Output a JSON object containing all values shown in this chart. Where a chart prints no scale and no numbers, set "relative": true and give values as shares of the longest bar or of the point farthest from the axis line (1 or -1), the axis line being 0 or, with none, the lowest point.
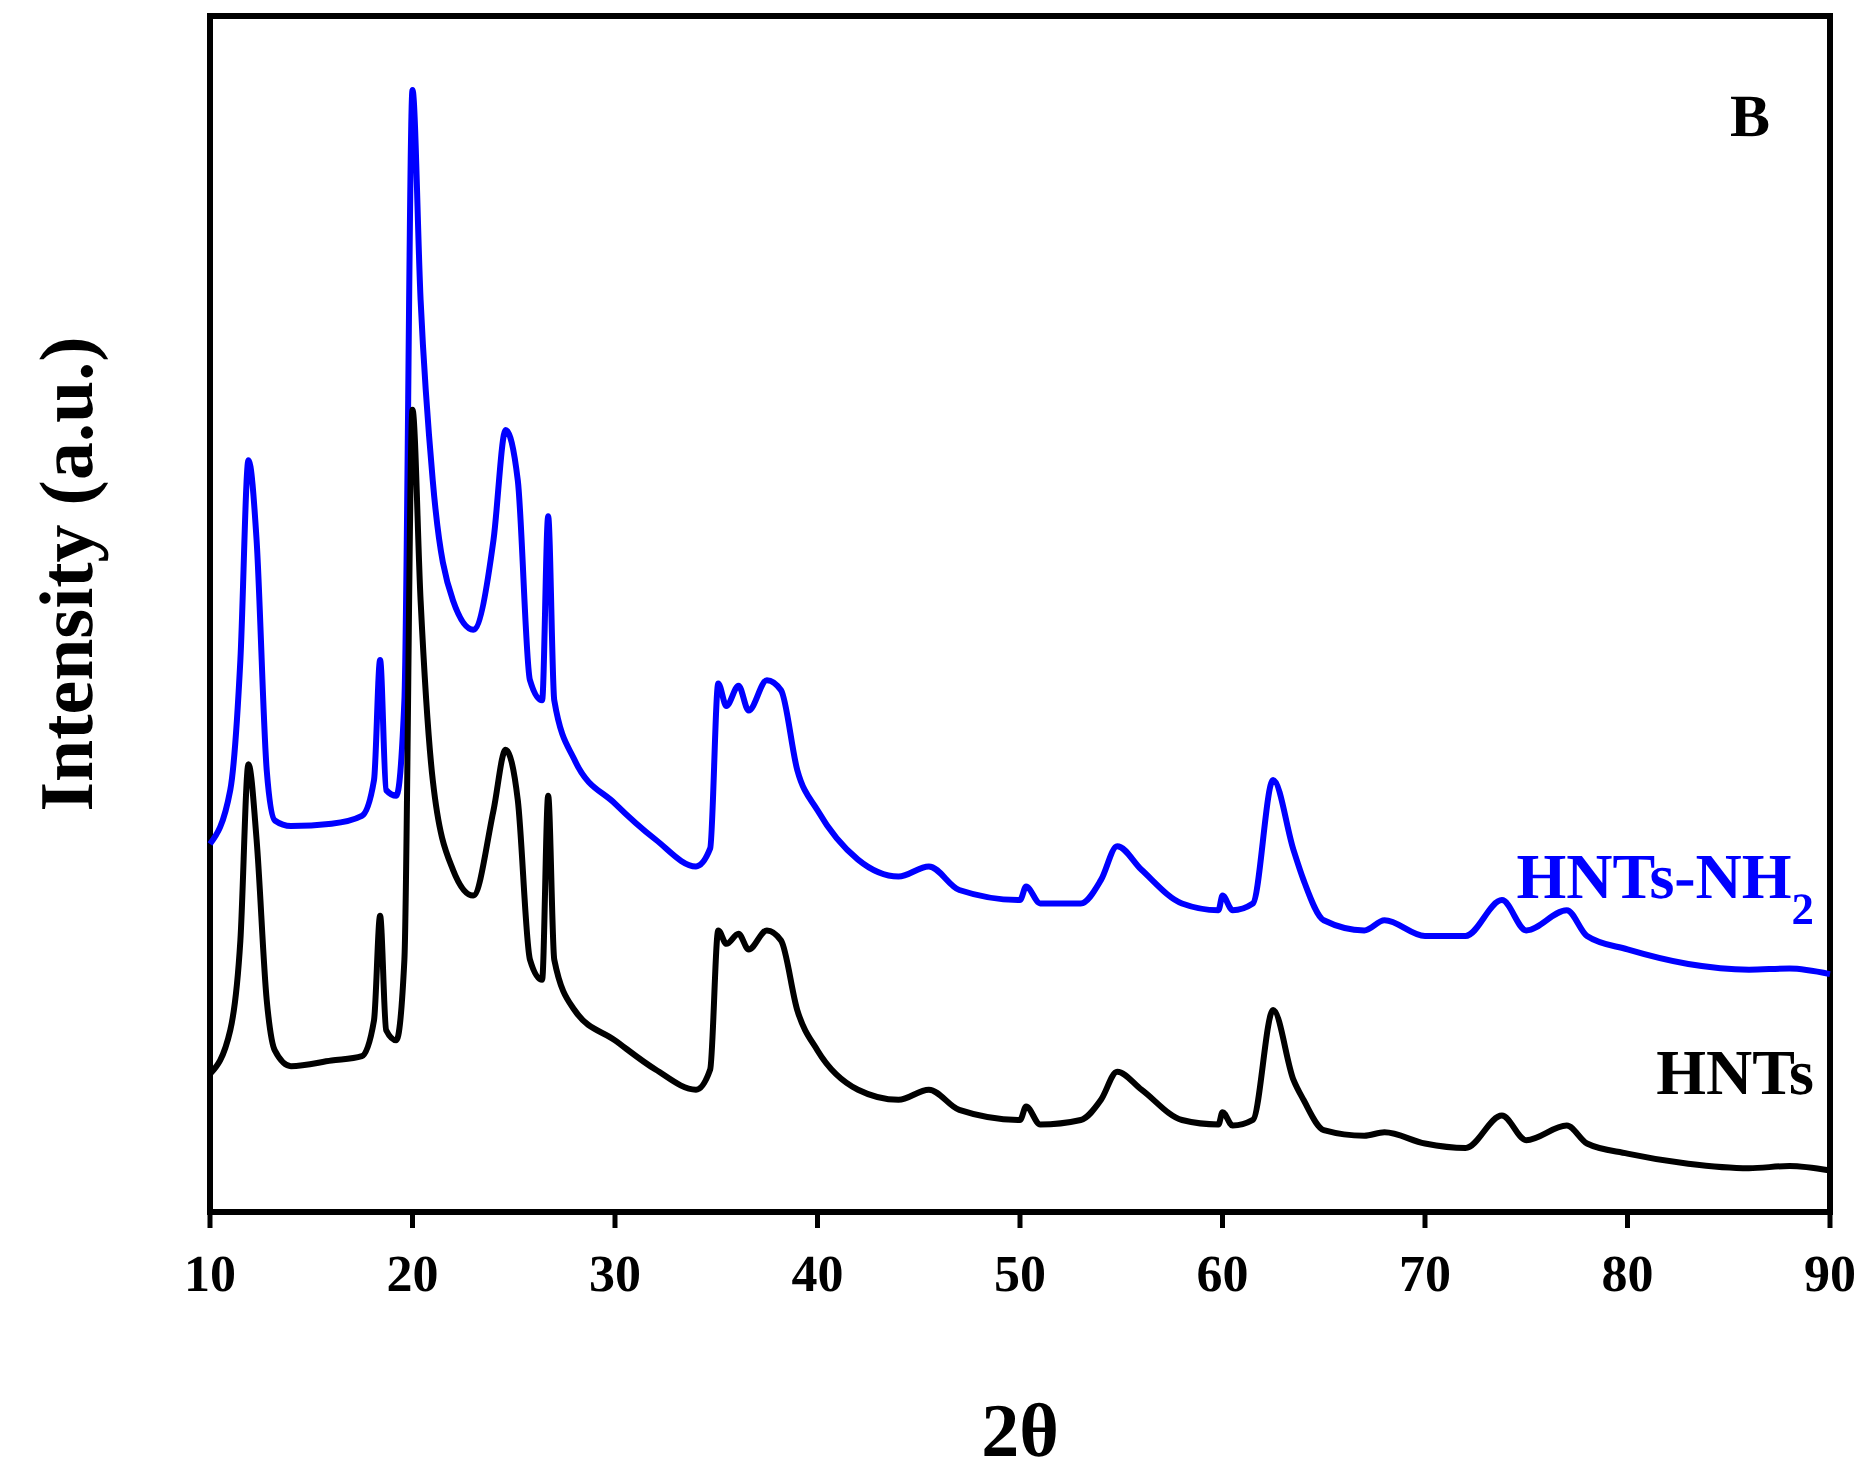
{
  "chart_data": {
    "type": "line",
    "xlabel": "2θ",
    "ylabel": "Intensity (a.u.)",
    "annotations": [
      "B"
    ],
    "relative": true,
    "xlim": [
      10,
      90
    ],
    "xticks": [
      10,
      20,
      30,
      40,
      50,
      60,
      70,
      80,
      90
    ],
    "grid": false,
    "marker": "none",
    "line_style": "solid",
    "x": [
      10,
      11,
      11.5,
      11.9,
      12.3,
      12.8,
      13.2,
      14,
      16,
      17.5,
      18.1,
      18.4,
      18.7,
      19.2,
      19.6,
      20,
      20.4,
      21,
      22,
      23,
      24,
      24.6,
      25.2,
      25.8,
      26.4,
      26.7,
      27,
      28,
      30,
      32,
      34,
      34.7,
      35.1,
      35.5,
      36.1,
      36.6,
      37.5,
      38.2,
      39,
      40,
      42,
      44,
      45.5,
      47,
      50,
      50.3,
      51,
      53,
      54,
      54.8,
      56,
      58,
      59.8,
      60,
      60.5,
      61.5,
      62.5,
      63.5,
      64,
      65,
      67,
      68,
      70,
      72,
      73.8,
      75,
      77,
      78,
      80,
      83,
      86,
      88,
      90
    ],
    "series": [
      {
        "name": "HNTs-NH$_{2}$",
        "color": "#0000ff",
        "values": [
          0.328,
          0.376,
          0.492,
          0.67,
          0.599,
          0.394,
          0.349,
          0.344,
          0.346,
          0.353,
          0.385,
          0.492,
          0.376,
          0.371,
          0.456,
          1.0,
          0.813,
          0.652,
          0.545,
          0.519,
          0.599,
          0.697,
          0.652,
          0.474,
          0.456,
          0.62,
          0.456,
          0.403,
          0.364,
          0.332,
          0.308,
          0.324,
          0.471,
          0.451,
          0.469,
          0.447,
          0.474,
          0.465,
          0.394,
          0.358,
          0.314,
          0.299,
          0.308,
          0.287,
          0.278,
          0.29,
          0.275,
          0.275,
          0.296,
          0.326,
          0.305,
          0.275,
          0.269,
          0.282,
          0.269,
          0.275,
          0.385,
          0.323,
          0.296,
          0.26,
          0.251,
          0.26,
          0.246,
          0.246,
          0.278,
          0.251,
          0.269,
          0.246,
          0.234,
          0.221,
          0.216,
          0.217,
          0.212
        ]
      },
      {
        "name": "HNTs",
        "color": "#000000",
        "values": [
          0.123,
          0.162,
          0.242,
          0.399,
          0.332,
          0.189,
          0.144,
          0.13,
          0.135,
          0.139,
          0.171,
          0.264,
          0.162,
          0.153,
          0.225,
          0.715,
          0.545,
          0.385,
          0.305,
          0.282,
          0.358,
          0.412,
          0.367,
          0.225,
          0.207,
          0.371,
          0.225,
          0.18,
          0.153,
          0.127,
          0.109,
          0.127,
          0.251,
          0.239,
          0.248,
          0.234,
          0.251,
          0.242,
          0.18,
          0.144,
          0.109,
          0.1,
          0.109,
          0.091,
          0.082,
          0.094,
          0.078,
          0.082,
          0.1,
          0.125,
          0.109,
          0.082,
          0.078,
          0.089,
          0.077,
          0.082,
          0.18,
          0.118,
          0.1,
          0.073,
          0.068,
          0.071,
          0.061,
          0.057,
          0.086,
          0.064,
          0.077,
          0.061,
          0.052,
          0.043,
          0.039,
          0.041,
          0.037
        ]
      }
    ]
  }
}
